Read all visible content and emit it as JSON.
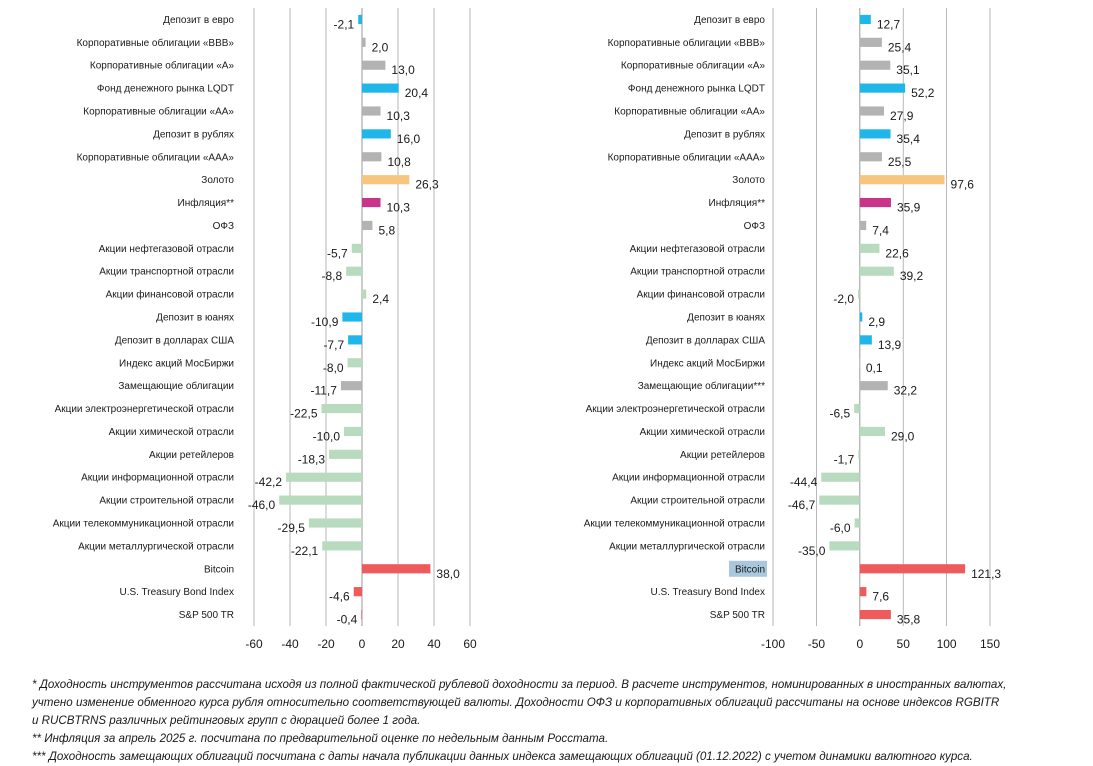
{
  "chart_data": [
    {
      "type": "bar",
      "orientation": "horizontal",
      "xlim": [
        -60,
        60
      ],
      "xticks": [
        -60,
        -40,
        -20,
        0,
        20,
        40,
        60
      ],
      "grid": true,
      "categories": [
        "Депозит в евро",
        "Корпоративные облигации «ВВВ»",
        "Корпоративные облигации «А»",
        "Фонд денежного рынка LQDT",
        "Корпоративные облигации «АА»",
        "Депозит в рублях",
        "Корпоративные облигации «ААА»",
        "Золото",
        "Инфляция**",
        "ОФЗ",
        "Акции нефтегазовой отрасли",
        "Акции транспортной отрасли",
        "Акции финансовой отрасли",
        "Депозит в юанях",
        "Депозит в долларах США",
        "Индекс акций МосБиржи",
        "Замещающие облигации",
        "Акции электроэнергетической отрасли",
        "Акции химической отрасли",
        "Акции ретейлеров",
        "Акции информационной отрасли",
        "Акции строительной отрасли",
        "Акции телекоммуникационной отрасли",
        "Акции металлургической отрасли",
        "Bitcoin",
        "U.S. Treasury Bond Index",
        "S&P 500 TR"
      ],
      "values": [
        -2.1,
        2.0,
        13.0,
        20.4,
        10.3,
        16.0,
        10.8,
        26.3,
        10.3,
        5.8,
        -5.7,
        -8.8,
        2.4,
        -10.9,
        -7.7,
        -8.0,
        -11.7,
        -22.5,
        -10.0,
        -18.3,
        -42.2,
        -46.0,
        -29.5,
        -22.1,
        38.0,
        -4.6,
        -0.4
      ],
      "value_labels": [
        "-2,1",
        "2,0",
        "13,0",
        "20,4",
        "10,3",
        "16,0",
        "10,8",
        "26,3",
        "10,3",
        "5,8",
        "-5,7",
        "-8,8",
        "2,4",
        "-10,9",
        "-7,7",
        "-8,0",
        "-11,7",
        "-22,5",
        "-10,0",
        "-18,3",
        "-42,2",
        "-46,0",
        "-29,5",
        "-22,1",
        "38,0",
        "-4,6",
        "-0,4"
      ],
      "groups": [
        "deposit",
        "corp",
        "corp",
        "deposit",
        "corp",
        "deposit",
        "corp",
        "gold",
        "inflation",
        "corp",
        "equity",
        "equity",
        "equity",
        "deposit",
        "deposit",
        "equity",
        "corp",
        "equity",
        "equity",
        "equity",
        "equity",
        "equity",
        "equity",
        "equity",
        "foreign",
        "foreign",
        "foreign"
      ]
    },
    {
      "type": "bar",
      "orientation": "horizontal",
      "xlim": [
        -100,
        150
      ],
      "xticks": [
        -100,
        -50,
        0,
        50,
        100,
        150
      ],
      "grid": true,
      "categories": [
        "Депозит в евро",
        "Корпоративные облигации «ВВВ»",
        "Корпоративные облигации «А»",
        "Фонд денежного рынка LQDT",
        "Корпоративные облигации «АА»",
        "Депозит в рублях",
        "Корпоративные облигации «ААА»",
        "Золото",
        "Инфляция**",
        "ОФЗ",
        "Акции нефтегазовой отрасли",
        "Акции транспортной отрасли",
        "Акции финансовой отрасли",
        "Депозит в юанях",
        "Депозит в долларах США",
        "Индекс акций МосБиржи",
        "Замещающие облигации***",
        "Акции электроэнергетической отрасли",
        "Акции химической отрасли",
        "Акции ретейлеров",
        "Акции информационной отрасли",
        "Акции строительной отрасли",
        "Акции телекоммуникационной отрасли",
        "Акции металлургической отрасли",
        "Bitcoin",
        "U.S. Treasury Bond Index",
        "S&P 500 TR"
      ],
      "values": [
        12.7,
        25.4,
        35.1,
        52.2,
        27.9,
        35.4,
        25.5,
        97.6,
        35.9,
        7.4,
        22.6,
        39.2,
        -2.0,
        2.9,
        13.9,
        0.1,
        32.2,
        -6.5,
        29.0,
        -1.7,
        -44.4,
        -46.7,
        -6.0,
        -35.0,
        121.3,
        7.6,
        35.8
      ],
      "value_labels": [
        "12,7",
        "25,4",
        "35,1",
        "52,2",
        "27,9",
        "35,4",
        "25,5",
        "97,6",
        "35,9",
        "7,4",
        "22,6",
        "39,2",
        "-2,0",
        "2,9",
        "13,9",
        "0,1",
        "32,2",
        "-6,5",
        "29,0",
        "-1,7",
        "-44,4",
        "-46,7",
        "-6,0",
        "-35,0",
        "121,3",
        "7,6",
        "35,8"
      ],
      "groups": [
        "deposit",
        "corp",
        "corp",
        "deposit",
        "corp",
        "deposit",
        "corp",
        "gold",
        "inflation",
        "corp",
        "equity",
        "equity",
        "equity",
        "deposit",
        "deposit",
        "equity",
        "corp",
        "equity",
        "equity",
        "equity",
        "equity",
        "equity",
        "equity",
        "equity",
        "foreign",
        "foreign",
        "foreign"
      ],
      "highlighted_category": "Bitcoin"
    }
  ],
  "colors": {
    "deposit": "#1fb6ea",
    "corp": "#b3b3b3",
    "gold": "#f8c47e",
    "inflation": "#c8358a",
    "equity": "#b8dbbf",
    "foreign": "#ef5a5a",
    "grid": "#999999",
    "highlight": "#a9c8dd"
  },
  "footnotes": [
    "* Доходность инструментов рассчитана исходя из полной фактической рублевой доходности за период. В расчете инструментов, номинированных в иностранных валютах,",
    "учтено изменение обменного курса рубля относительно соответствующей валюты. Доходности ОФЗ и корпоративных облигаций рассчитаны на основе индексов RGBITR",
    "и RUCBTRNS различных рейтинговых групп с дюрацией более 1 года.",
    "** Инфляция за апрель 2025 г. посчитана по предварительной оценке по недельным данным Росстата.",
    "*** Доходность замещающих облигаций посчитана с даты начала публикации данных индекса замещающих облигаций (01.12.2022) с учетом динамики валютного курса."
  ]
}
